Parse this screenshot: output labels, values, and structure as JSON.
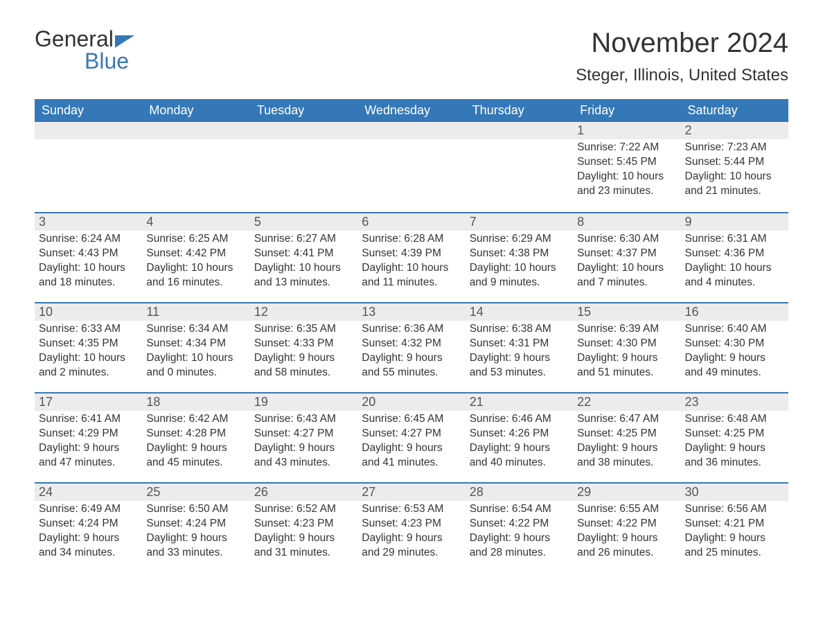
{
  "logo": {
    "text1": "General",
    "text2": "Blue"
  },
  "title": "November 2024",
  "subtitle": "Steger, Illinois, United States",
  "columns": [
    "Sunday",
    "Monday",
    "Tuesday",
    "Wednesday",
    "Thursday",
    "Friday",
    "Saturday"
  ],
  "style": {
    "header_bg": "#3478b8",
    "header_fg": "#ffffff",
    "daynum_bg": "#ececec",
    "border_color": "#3478b8",
    "text_color": "#333333",
    "logo_accent": "#3478b8",
    "title_fontsize": 40,
    "subtitle_fontsize": 24,
    "header_fontsize": 18,
    "body_fontsize": 15.5
  },
  "weeks": [
    [
      null,
      null,
      null,
      null,
      null,
      {
        "n": "1",
        "sunrise": "Sunrise: 7:22 AM",
        "sunset": "Sunset: 5:45 PM",
        "daylight1": "Daylight: 10 hours",
        "daylight2": "and 23 minutes."
      },
      {
        "n": "2",
        "sunrise": "Sunrise: 7:23 AM",
        "sunset": "Sunset: 5:44 PM",
        "daylight1": "Daylight: 10 hours",
        "daylight2": "and 21 minutes."
      }
    ],
    [
      {
        "n": "3",
        "sunrise": "Sunrise: 6:24 AM",
        "sunset": "Sunset: 4:43 PM",
        "daylight1": "Daylight: 10 hours",
        "daylight2": "and 18 minutes."
      },
      {
        "n": "4",
        "sunrise": "Sunrise: 6:25 AM",
        "sunset": "Sunset: 4:42 PM",
        "daylight1": "Daylight: 10 hours",
        "daylight2": "and 16 minutes."
      },
      {
        "n": "5",
        "sunrise": "Sunrise: 6:27 AM",
        "sunset": "Sunset: 4:41 PM",
        "daylight1": "Daylight: 10 hours",
        "daylight2": "and 13 minutes."
      },
      {
        "n": "6",
        "sunrise": "Sunrise: 6:28 AM",
        "sunset": "Sunset: 4:39 PM",
        "daylight1": "Daylight: 10 hours",
        "daylight2": "and 11 minutes."
      },
      {
        "n": "7",
        "sunrise": "Sunrise: 6:29 AM",
        "sunset": "Sunset: 4:38 PM",
        "daylight1": "Daylight: 10 hours",
        "daylight2": "and 9 minutes."
      },
      {
        "n": "8",
        "sunrise": "Sunrise: 6:30 AM",
        "sunset": "Sunset: 4:37 PM",
        "daylight1": "Daylight: 10 hours",
        "daylight2": "and 7 minutes."
      },
      {
        "n": "9",
        "sunrise": "Sunrise: 6:31 AM",
        "sunset": "Sunset: 4:36 PM",
        "daylight1": "Daylight: 10 hours",
        "daylight2": "and 4 minutes."
      }
    ],
    [
      {
        "n": "10",
        "sunrise": "Sunrise: 6:33 AM",
        "sunset": "Sunset: 4:35 PM",
        "daylight1": "Daylight: 10 hours",
        "daylight2": "and 2 minutes."
      },
      {
        "n": "11",
        "sunrise": "Sunrise: 6:34 AM",
        "sunset": "Sunset: 4:34 PM",
        "daylight1": "Daylight: 10 hours",
        "daylight2": "and 0 minutes."
      },
      {
        "n": "12",
        "sunrise": "Sunrise: 6:35 AM",
        "sunset": "Sunset: 4:33 PM",
        "daylight1": "Daylight: 9 hours",
        "daylight2": "and 58 minutes."
      },
      {
        "n": "13",
        "sunrise": "Sunrise: 6:36 AM",
        "sunset": "Sunset: 4:32 PM",
        "daylight1": "Daylight: 9 hours",
        "daylight2": "and 55 minutes."
      },
      {
        "n": "14",
        "sunrise": "Sunrise: 6:38 AM",
        "sunset": "Sunset: 4:31 PM",
        "daylight1": "Daylight: 9 hours",
        "daylight2": "and 53 minutes."
      },
      {
        "n": "15",
        "sunrise": "Sunrise: 6:39 AM",
        "sunset": "Sunset: 4:30 PM",
        "daylight1": "Daylight: 9 hours",
        "daylight2": "and 51 minutes."
      },
      {
        "n": "16",
        "sunrise": "Sunrise: 6:40 AM",
        "sunset": "Sunset: 4:30 PM",
        "daylight1": "Daylight: 9 hours",
        "daylight2": "and 49 minutes."
      }
    ],
    [
      {
        "n": "17",
        "sunrise": "Sunrise: 6:41 AM",
        "sunset": "Sunset: 4:29 PM",
        "daylight1": "Daylight: 9 hours",
        "daylight2": "and 47 minutes."
      },
      {
        "n": "18",
        "sunrise": "Sunrise: 6:42 AM",
        "sunset": "Sunset: 4:28 PM",
        "daylight1": "Daylight: 9 hours",
        "daylight2": "and 45 minutes."
      },
      {
        "n": "19",
        "sunrise": "Sunrise: 6:43 AM",
        "sunset": "Sunset: 4:27 PM",
        "daylight1": "Daylight: 9 hours",
        "daylight2": "and 43 minutes."
      },
      {
        "n": "20",
        "sunrise": "Sunrise: 6:45 AM",
        "sunset": "Sunset: 4:27 PM",
        "daylight1": "Daylight: 9 hours",
        "daylight2": "and 41 minutes."
      },
      {
        "n": "21",
        "sunrise": "Sunrise: 6:46 AM",
        "sunset": "Sunset: 4:26 PM",
        "daylight1": "Daylight: 9 hours",
        "daylight2": "and 40 minutes."
      },
      {
        "n": "22",
        "sunrise": "Sunrise: 6:47 AM",
        "sunset": "Sunset: 4:25 PM",
        "daylight1": "Daylight: 9 hours",
        "daylight2": "and 38 minutes."
      },
      {
        "n": "23",
        "sunrise": "Sunrise: 6:48 AM",
        "sunset": "Sunset: 4:25 PM",
        "daylight1": "Daylight: 9 hours",
        "daylight2": "and 36 minutes."
      }
    ],
    [
      {
        "n": "24",
        "sunrise": "Sunrise: 6:49 AM",
        "sunset": "Sunset: 4:24 PM",
        "daylight1": "Daylight: 9 hours",
        "daylight2": "and 34 minutes."
      },
      {
        "n": "25",
        "sunrise": "Sunrise: 6:50 AM",
        "sunset": "Sunset: 4:24 PM",
        "daylight1": "Daylight: 9 hours",
        "daylight2": "and 33 minutes."
      },
      {
        "n": "26",
        "sunrise": "Sunrise: 6:52 AM",
        "sunset": "Sunset: 4:23 PM",
        "daylight1": "Daylight: 9 hours",
        "daylight2": "and 31 minutes."
      },
      {
        "n": "27",
        "sunrise": "Sunrise: 6:53 AM",
        "sunset": "Sunset: 4:23 PM",
        "daylight1": "Daylight: 9 hours",
        "daylight2": "and 29 minutes."
      },
      {
        "n": "28",
        "sunrise": "Sunrise: 6:54 AM",
        "sunset": "Sunset: 4:22 PM",
        "daylight1": "Daylight: 9 hours",
        "daylight2": "and 28 minutes."
      },
      {
        "n": "29",
        "sunrise": "Sunrise: 6:55 AM",
        "sunset": "Sunset: 4:22 PM",
        "daylight1": "Daylight: 9 hours",
        "daylight2": "and 26 minutes."
      },
      {
        "n": "30",
        "sunrise": "Sunrise: 6:56 AM",
        "sunset": "Sunset: 4:21 PM",
        "daylight1": "Daylight: 9 hours",
        "daylight2": "and 25 minutes."
      }
    ]
  ]
}
